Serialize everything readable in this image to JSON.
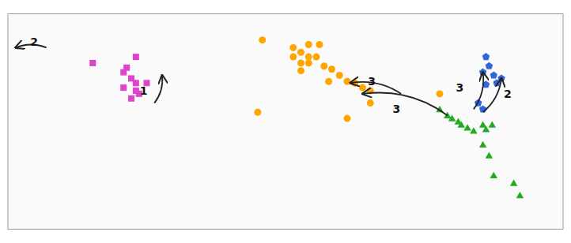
{
  "chart_data": {
    "type": "scatter",
    "xlim": [
      -180,
      180
    ],
    "ylim": [
      -60,
      80
    ],
    "grid": false,
    "tick_labels": false,
    "series": [
      {
        "color": "#DD44CC",
        "marker": "square",
        "x": [
          -125,
          -97,
          -105,
          -100,
          -97,
          -90,
          -97,
          -100,
          -95,
          -105,
          -103
        ],
        "values": [
          48,
          52,
          42,
          38,
          35,
          35,
          30,
          25,
          28,
          32,
          45
        ]
      },
      {
        "color": "#FFA500",
        "marker": "circle",
        "x": [
          -15,
          5,
          15,
          22,
          10,
          5,
          15,
          20,
          10,
          15,
          25,
          10,
          30,
          35,
          28,
          40,
          45,
          50,
          55,
          -18,
          40,
          55,
          100
        ],
        "values": [
          63,
          58,
          60,
          60,
          55,
          52,
          52,
          52,
          48,
          48,
          46,
          43,
          44,
          40,
          36,
          36,
          35,
          32,
          30,
          16,
          12,
          22,
          28
        ]
      },
      {
        "color": "#3366DD",
        "marker": "pentagon",
        "x": [
          130,
          132,
          128,
          135,
          140,
          137,
          130,
          125,
          128
        ],
        "values": [
          52,
          46,
          42,
          40,
          38,
          35,
          34,
          22,
          18
        ]
      },
      {
        "color": "#22AA22",
        "marker": "triangle",
        "x": [
          100,
          105,
          108,
          112,
          114,
          118,
          122,
          128,
          130,
          134,
          128,
          132,
          135,
          148,
          152
        ],
        "values": [
          18,
          14,
          12,
          10,
          8,
          6,
          4,
          8,
          5,
          8,
          -5,
          -12,
          -25,
          -30,
          -38
        ]
      }
    ],
    "annotations": [
      {
        "text": "1",
        "x": -92,
        "y": 30,
        "arrow": {
          "x1": -85,
          "y1": 22,
          "x2": -80,
          "y2": 40
        }
      },
      {
        "text": "2",
        "x": -163,
        "y": 62,
        "arrow": {
          "x1": -155,
          "y1": 58,
          "x2": -175,
          "y2": 58
        }
      },
      {
        "text": "3",
        "x": 56,
        "y": 36,
        "arrow": {
          "x1": 75,
          "y1": 28,
          "x2": 42,
          "y2": 35
        }
      },
      {
        "text": "3",
        "x": 72,
        "y": 18,
        "arrow": {
          "x1": 105,
          "y1": 14,
          "x2": 50,
          "y2": 28
        }
      },
      {
        "text": "2",
        "x": 144,
        "y": 28,
        "arrow": {
          "x1": 128,
          "y1": 16,
          "x2": 140,
          "y2": 38
        }
      },
      {
        "text": "3",
        "x": 113,
        "y": 32,
        "arrow": {
          "x1": 122,
          "y1": 18,
          "x2": 128,
          "y2": 42
        }
      }
    ]
  }
}
